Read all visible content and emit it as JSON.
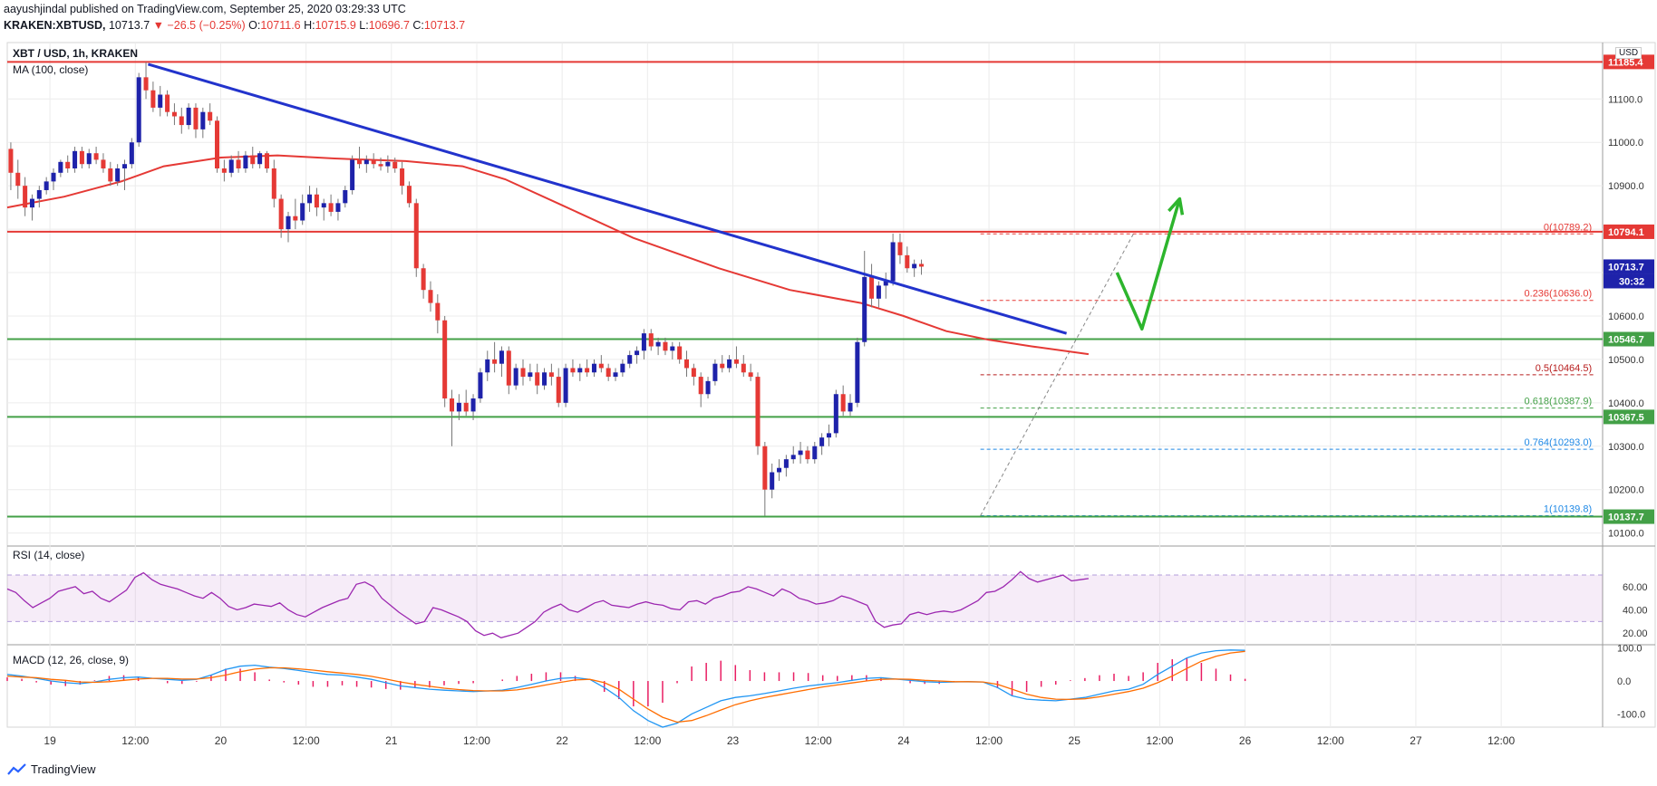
{
  "header": {
    "line1": "aayushjindal published on TradingView.com, September 25, 2020 03:29:33 UTC",
    "symbol": "KRAKEN:XBTUSD,",
    "last": "10713.7",
    "change": "▼ −26.5 (−0.25%)",
    "o_label": "O:",
    "o": "10711.6",
    "h_label": "H:",
    "h": "10715.9",
    "l_label": "L:",
    "l": "10696.7",
    "c_label": "C:",
    "c": "10713.7"
  },
  "main_pane": {
    "title": "XBT / USD, 1h, KRAKEN",
    "indicator": "MA (100, close)",
    "currency": "USD",
    "countdown": "30:32"
  },
  "rsi_pane": {
    "title": "RSI (14, close)"
  },
  "macd_pane": {
    "title": "MACD (12, 26, close, 9)"
  },
  "brand": {
    "name": "TradingView"
  },
  "colors": {
    "up": "#1e22aa",
    "down": "#e53935",
    "ma": "#e53935",
    "trend": "#2233cc",
    "support": "#43a047",
    "resistance": "#e53935",
    "rsi": "#9c27b0",
    "macd": "#2196f3",
    "signal": "#ff6d00",
    "hist": "#e91e63",
    "arrow": "#2db52d"
  },
  "chart_data": {
    "type": "candlestick",
    "title": "XBT / USD, 1h, KRAKEN",
    "x_ticks": [
      "19",
      "12:00",
      "20",
      "12:00",
      "21",
      "12:00",
      "22",
      "12:00",
      "23",
      "12:00",
      "24",
      "12:00",
      "25",
      "12:00",
      "26",
      "12:00",
      "27",
      "12:00"
    ],
    "x_tick_hours": [
      30,
      42,
      54,
      66,
      78,
      90,
      102,
      114,
      126,
      138,
      150,
      162,
      174,
      186,
      198,
      210,
      222,
      234
    ],
    "x_range_hours": [
      24,
      248
    ],
    "y_range": [
      10070,
      11230
    ],
    "y_ticks": [
      10100,
      10200,
      10300,
      10400,
      10500,
      10600,
      10700,
      10800,
      10900,
      11000,
      11100
    ],
    "price_labels": [
      {
        "text": "11185.4",
        "value": 11185.4,
        "color": "#e53935"
      },
      {
        "text": "10794.1",
        "value": 10794.1,
        "color": "#e53935"
      },
      {
        "text": "10713.7",
        "value": 10713.7,
        "color": "#1e22aa"
      },
      {
        "text": "10546.7",
        "value": 10546.7,
        "color": "#43a047"
      },
      {
        "text": "10367.5",
        "value": 10367.5,
        "color": "#43a047"
      },
      {
        "text": "10137.7",
        "value": 10137.7,
        "color": "#43a047"
      }
    ],
    "horizontal_lines": [
      {
        "value": 11185.4,
        "color": "#e53935",
        "role": "resistance"
      },
      {
        "value": 10794.1,
        "color": "#e53935",
        "role": "resistance"
      },
      {
        "value": 10546.7,
        "color": "#43a047",
        "role": "support"
      },
      {
        "value": 10367.5,
        "color": "#43a047",
        "role": "support"
      },
      {
        "value": 10137.7,
        "color": "#43a047",
        "role": "support"
      }
    ],
    "fib_levels": [
      {
        "text": "0(10789.2)",
        "value": 10789.2,
        "color": "#e53935"
      },
      {
        "text": "0.236(10636.0)",
        "value": 10636.0,
        "color": "#e53935"
      },
      {
        "text": "0.5(10464.5)",
        "value": 10464.5,
        "color": "#b71c1c"
      },
      {
        "text": "0.618(10387.9)",
        "value": 10387.9,
        "color": "#43a047"
      },
      {
        "text": "0.764(10293.0)",
        "value": 10293.0,
        "color": "#1e88e5"
      },
      {
        "text": "1(10139.8)",
        "value": 10139.8,
        "color": "#1e88e5"
      }
    ],
    "fib_span_hours": [
      160.8,
      247
    ],
    "fib_anchor": {
      "from": {
        "h": 160.8,
        "v": 10139.8
      },
      "to": {
        "h": 182.3,
        "v": 10789.2
      }
    },
    "trend_line": {
      "from": {
        "h": 43.8,
        "v": 11180
      },
      "to": {
        "h": 172.9,
        "v": 10560
      }
    },
    "ma100": [
      {
        "h": 24,
        "v": 10850
      },
      {
        "h": 32,
        "v": 10875
      },
      {
        "h": 40,
        "v": 10910
      },
      {
        "h": 46,
        "v": 10945
      },
      {
        "h": 54,
        "v": 10965
      },
      {
        "h": 62,
        "v": 10970
      },
      {
        "h": 70,
        "v": 10963
      },
      {
        "h": 80,
        "v": 10957
      },
      {
        "h": 88,
        "v": 10945
      },
      {
        "h": 94,
        "v": 10915
      },
      {
        "h": 102,
        "v": 10855
      },
      {
        "h": 112,
        "v": 10780
      },
      {
        "h": 124,
        "v": 10710
      },
      {
        "h": 134,
        "v": 10660
      },
      {
        "h": 144,
        "v": 10630
      },
      {
        "h": 150,
        "v": 10600
      },
      {
        "h": 156,
        "v": 10565
      },
      {
        "h": 162,
        "v": 10545
      },
      {
        "h": 168,
        "v": 10530
      },
      {
        "h": 176,
        "v": 10512
      }
    ],
    "candles": [
      [
        10985,
        11000,
        10890,
        10930
      ],
      [
        10930,
        10960,
        10870,
        10900
      ],
      [
        10900,
        10920,
        10830,
        10850
      ],
      [
        10850,
        10880,
        10820,
        10870
      ],
      [
        10870,
        10900,
        10850,
        10890
      ],
      [
        10890,
        10920,
        10880,
        10910
      ],
      [
        10910,
        10940,
        10890,
        10930
      ],
      [
        10930,
        10960,
        10920,
        10955
      ],
      [
        10955,
        10970,
        10930,
        10940
      ],
      [
        10940,
        10990,
        10930,
        10980
      ],
      [
        10980,
        10990,
        10940,
        10950
      ],
      [
        10950,
        10985,
        10940,
        10975
      ],
      [
        10975,
        10990,
        10950,
        10960
      ],
      [
        10960,
        10975,
        10930,
        10940
      ],
      [
        10940,
        10955,
        10900,
        10910
      ],
      [
        10910,
        10950,
        10900,
        10940
      ],
      [
        10940,
        10960,
        10890,
        10950
      ],
      [
        10950,
        11010,
        10940,
        11000
      ],
      [
        11000,
        11160,
        10990,
        11150
      ],
      [
        11150,
        11185,
        11100,
        11120
      ],
      [
        11120,
        11140,
        11070,
        11080
      ],
      [
        11080,
        11130,
        11060,
        11110
      ],
      [
        11110,
        11120,
        11060,
        11070
      ],
      [
        11070,
        11090,
        11040,
        11060
      ],
      [
        11060,
        11080,
        11020,
        11040
      ],
      [
        11040,
        11090,
        11030,
        11080
      ],
      [
        11080,
        11090,
        11010,
        11030
      ],
      [
        11030,
        11080,
        11010,
        11070
      ],
      [
        11070,
        11090,
        11040,
        11050
      ],
      [
        11050,
        11060,
        10930,
        10940
      ],
      [
        10940,
        10960,
        10910,
        10930
      ],
      [
        10930,
        10970,
        10920,
        10960
      ],
      [
        10960,
        10980,
        10930,
        10940
      ],
      [
        10940,
        10980,
        10930,
        10970
      ],
      [
        10970,
        10990,
        10940,
        10950
      ],
      [
        10950,
        10980,
        10940,
        10975
      ],
      [
        10975,
        10980,
        10930,
        10940
      ],
      [
        10940,
        10960,
        10850,
        10870
      ],
      [
        10870,
        10880,
        10780,
        10800
      ],
      [
        10800,
        10840,
        10770,
        10830
      ],
      [
        10830,
        10870,
        10800,
        10820
      ],
      [
        10820,
        10880,
        10810,
        10860
      ],
      [
        10860,
        10900,
        10840,
        10880
      ],
      [
        10880,
        10895,
        10830,
        10850
      ],
      [
        10850,
        10870,
        10820,
        10860
      ],
      [
        10860,
        10880,
        10830,
        10840
      ],
      [
        10840,
        10870,
        10820,
        10860
      ],
      [
        10860,
        10900,
        10850,
        10890
      ],
      [
        10890,
        10970,
        10880,
        10960
      ],
      [
        10960,
        10990,
        10940,
        10950
      ],
      [
        10950,
        10970,
        10930,
        10960
      ],
      [
        10960,
        10975,
        10940,
        10950
      ],
      [
        10950,
        10965,
        10935,
        10945
      ],
      [
        10945,
        10970,
        10930,
        10955
      ],
      [
        10955,
        10965,
        10930,
        10940
      ],
      [
        10940,
        10955,
        10880,
        10900
      ],
      [
        10900,
        10910,
        10850,
        10860
      ],
      [
        10860,
        10870,
        10690,
        10710
      ],
      [
        10710,
        10720,
        10640,
        10660
      ],
      [
        10660,
        10680,
        10610,
        10630
      ],
      [
        10630,
        10650,
        10560,
        10590
      ],
      [
        10590,
        10600,
        10390,
        10410
      ],
      [
        10410,
        10430,
        10300,
        10380
      ],
      [
        10380,
        10420,
        10360,
        10400
      ],
      [
        10400,
        10430,
        10370,
        10380
      ],
      [
        10380,
        10420,
        10360,
        10410
      ],
      [
        10410,
        10480,
        10400,
        10470
      ],
      [
        10470,
        10520,
        10450,
        10500
      ],
      [
        10500,
        10540,
        10470,
        10490
      ],
      [
        10490,
        10530,
        10460,
        10520
      ],
      [
        10520,
        10530,
        10420,
        10440
      ],
      [
        10440,
        10490,
        10430,
        10480
      ],
      [
        10480,
        10500,
        10440,
        10460
      ],
      [
        10460,
        10490,
        10450,
        10470
      ],
      [
        10470,
        10490,
        10420,
        10440
      ],
      [
        10440,
        10480,
        10430,
        10470
      ],
      [
        10470,
        10490,
        10440,
        10460
      ],
      [
        10460,
        10480,
        10390,
        10400
      ],
      [
        10400,
        10490,
        10390,
        10480
      ],
      [
        10480,
        10500,
        10460,
        10470
      ],
      [
        10470,
        10490,
        10450,
        10480
      ],
      [
        10480,
        10500,
        10460,
        10470
      ],
      [
        10470,
        10500,
        10460,
        10490
      ],
      [
        10490,
        10510,
        10470,
        10480
      ],
      [
        10480,
        10490,
        10450,
        10460
      ],
      [
        10460,
        10480,
        10450,
        10470
      ],
      [
        10470,
        10500,
        10460,
        10490
      ],
      [
        10490,
        10520,
        10480,
        10510
      ],
      [
        10510,
        10530,
        10490,
        10520
      ],
      [
        10520,
        10570,
        10500,
        10560
      ],
      [
        10560,
        10570,
        10520,
        10530
      ],
      [
        10530,
        10550,
        10510,
        10540
      ],
      [
        10540,
        10550,
        10510,
        10520
      ],
      [
        10520,
        10540,
        10500,
        10530
      ],
      [
        10530,
        10540,
        10490,
        10500
      ],
      [
        10500,
        10520,
        10460,
        10480
      ],
      [
        10480,
        10490,
        10440,
        10460
      ],
      [
        10460,
        10470,
        10390,
        10420
      ],
      [
        10420,
        10460,
        10410,
        10450
      ],
      [
        10450,
        10500,
        10440,
        10490
      ],
      [
        10490,
        10510,
        10470,
        10480
      ],
      [
        10480,
        10510,
        10470,
        10500
      ],
      [
        10500,
        10530,
        10480,
        10490
      ],
      [
        10490,
        10510,
        10460,
        10470
      ],
      [
        10470,
        10490,
        10450,
        10460
      ],
      [
        10460,
        10470,
        10280,
        10300
      ],
      [
        10300,
        10310,
        10140,
        10200
      ],
      [
        10200,
        10260,
        10180,
        10240
      ],
      [
        10240,
        10270,
        10220,
        10250
      ],
      [
        10250,
        10280,
        10230,
        10270
      ],
      [
        10270,
        10300,
        10260,
        10280
      ],
      [
        10280,
        10310,
        10260,
        10290
      ],
      [
        10290,
        10300,
        10260,
        10270
      ],
      [
        10270,
        10310,
        10260,
        10300
      ],
      [
        10300,
        10330,
        10280,
        10320
      ],
      [
        10320,
        10350,
        10300,
        10330
      ],
      [
        10330,
        10430,
        10320,
        10420
      ],
      [
        10420,
        10440,
        10370,
        10380
      ],
      [
        10380,
        10420,
        10370,
        10400
      ],
      [
        10400,
        10550,
        10390,
        10540
      ],
      [
        10540,
        10750,
        10530,
        10690
      ],
      [
        10690,
        10720,
        10620,
        10640
      ],
      [
        10640,
        10680,
        10620,
        10670
      ],
      [
        10670,
        10700,
        10640,
        10680
      ],
      [
        10680,
        10790,
        10670,
        10770
      ],
      [
        10770,
        10790,
        10720,
        10740
      ],
      [
        10740,
        10760,
        10700,
        10710
      ],
      [
        10710,
        10730,
        10690,
        10720
      ],
      [
        10720,
        10730,
        10695,
        10713.7
      ]
    ],
    "candle_start_hour": 24.5,
    "arrow": [
      {
        "h": 180,
        "v": 10700
      },
      {
        "h": 183.5,
        "v": 10570
      },
      {
        "h": 188.8,
        "v": 10870
      }
    ],
    "rsi": {
      "title": "RSI (14, close)",
      "y_range": [
        10,
        95
      ],
      "ticks": [
        20,
        40,
        60
      ],
      "band": [
        30,
        70
      ],
      "values": [
        58,
        55,
        48,
        42,
        46,
        50,
        56,
        58,
        60,
        54,
        56,
        50,
        47,
        52,
        57,
        68,
        72,
        66,
        62,
        60,
        58,
        55,
        52,
        50,
        55,
        50,
        43,
        40,
        42,
        45,
        44,
        43,
        46,
        40,
        36,
        34,
        38,
        42,
        45,
        48,
        50,
        62,
        64,
        60,
        50,
        44,
        38,
        33,
        28,
        30,
        42,
        40,
        37,
        34,
        30,
        22,
        18,
        20,
        16,
        18,
        20,
        25,
        30,
        38,
        42,
        45,
        40,
        38,
        42,
        46,
        48,
        44,
        43,
        42,
        45,
        47,
        45,
        44,
        41,
        40,
        47,
        48,
        45,
        50,
        52,
        55,
        56,
        60,
        58,
        55,
        52,
        58,
        55,
        50,
        48,
        45,
        46,
        48,
        52,
        50,
        47,
        44,
        30,
        25,
        27,
        28,
        36,
        38,
        36,
        38,
        39,
        38,
        40,
        44,
        48,
        55,
        56,
        60,
        66,
        73,
        67,
        64,
        66,
        68,
        70,
        65,
        66,
        67
      ]
    },
    "macd": {
      "title": "MACD (12, 26, close, 9)",
      "y_range": [
        -140,
        110
      ],
      "ticks": [
        100,
        0,
        -100
      ],
      "macd": [
        20,
        15,
        8,
        0,
        -5,
        -8,
        -3,
        5,
        10,
        12,
        8,
        5,
        2,
        5,
        18,
        35,
        45,
        48,
        42,
        38,
        32,
        25,
        20,
        18,
        12,
        5,
        -5,
        -15,
        -20,
        -25,
        -28,
        -30,
        -32,
        -30,
        -28,
        -20,
        -10,
        0,
        8,
        10,
        5,
        -20,
        -50,
        -90,
        -120,
        -140,
        -128,
        -100,
        -80,
        -60,
        -50,
        -45,
        -38,
        -30,
        -22,
        -15,
        -10,
        -5,
        2,
        8,
        10,
        6,
        2,
        -2,
        -4,
        -3,
        -2,
        -3,
        -20,
        -45,
        -55,
        -58,
        -60,
        -55,
        -50,
        -40,
        -30,
        -25,
        -10,
        20,
        45,
        70,
        85,
        92,
        94,
        93
      ],
      "signal": [
        15,
        12,
        10,
        5,
        2,
        -3,
        -4,
        -2,
        2,
        6,
        8,
        8,
        6,
        6,
        10,
        18,
        28,
        36,
        40,
        40,
        37,
        33,
        28,
        24,
        20,
        14,
        6,
        -3,
        -10,
        -16,
        -22,
        -26,
        -29,
        -30,
        -30,
        -27,
        -20,
        -12,
        -4,
        3,
        5,
        -5,
        -25,
        -55,
        -85,
        -110,
        -125,
        -120,
        -105,
        -88,
        -72,
        -60,
        -50,
        -42,
        -34,
        -26,
        -18,
        -12,
        -6,
        0,
        5,
        6,
        5,
        2,
        0,
        -2,
        -2,
        -3,
        -10,
        -25,
        -40,
        -50,
        -55,
        -56,
        -54,
        -48,
        -40,
        -32,
        -22,
        -5,
        15,
        38,
        60,
        75,
        85,
        90
      ],
      "hist_span_hours": [
        24,
        198
      ]
    }
  }
}
